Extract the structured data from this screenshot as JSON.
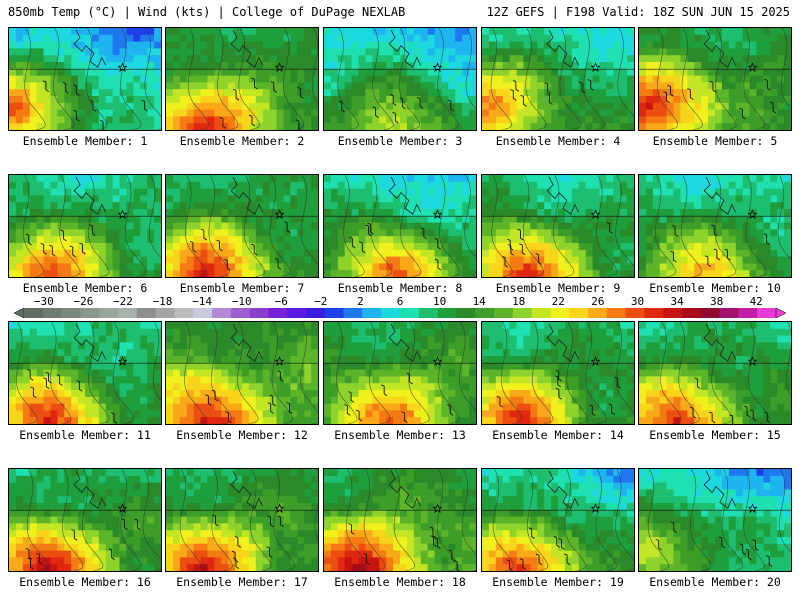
{
  "header": {
    "left": "850mb Temp (°C) | Wind (kts) | College of DuPage NEXLAB",
    "right": "12Z GEFS | F198 Valid: 18Z SUN JUN 15 2025"
  },
  "panel_label_prefix": "Ensemble Member: ",
  "members": [
    {
      "id": "1",
      "label": "Ensemble Member: 1",
      "base": 10,
      "heat": 24,
      "cool": -4,
      "hot_side": "west"
    },
    {
      "id": "2",
      "label": "Ensemble Member: 2",
      "base": 16,
      "heat": 20,
      "cool": 0,
      "hot_side": "southwest"
    },
    {
      "id": "3",
      "label": "Ensemble Member: 3",
      "base": 12,
      "heat": 12,
      "cool": -6,
      "hot_side": "south"
    },
    {
      "id": "4",
      "label": "Ensemble Member: 4",
      "base": 14,
      "heat": 18,
      "cool": -4,
      "hot_side": "west"
    },
    {
      "id": "5",
      "label": "Ensemble Member: 5",
      "base": 16,
      "heat": 22,
      "cool": 0,
      "hot_side": "west"
    },
    {
      "id": "6",
      "label": "Ensemble Member: 6",
      "base": 14,
      "heat": 20,
      "cool": -2,
      "hot_side": "southwest"
    },
    {
      "id": "7",
      "label": "Ensemble Member: 7",
      "base": 15,
      "heat": 22,
      "cool": 0,
      "hot_side": "southwest"
    },
    {
      "id": "8",
      "label": "Ensemble Member: 8",
      "base": 13,
      "heat": 20,
      "cool": -4,
      "hot_side": "south"
    },
    {
      "id": "9",
      "label": "Ensemble Member: 9",
      "base": 15,
      "heat": 20,
      "cool": -4,
      "hot_side": "southwest"
    },
    {
      "id": "10",
      "label": "Ensemble Member: 10",
      "base": 14,
      "heat": 14,
      "cool": -4,
      "hot_side": "south"
    },
    {
      "id": "11",
      "label": "Ensemble Member: 11",
      "base": 14,
      "heat": 22,
      "cool": -2,
      "hot_side": "southwest"
    },
    {
      "id": "12",
      "label": "Ensemble Member: 12",
      "base": 18,
      "heat": 18,
      "cool": 0,
      "hot_side": "southwest"
    },
    {
      "id": "13",
      "label": "Ensemble Member: 13",
      "base": 16,
      "heat": 16,
      "cool": 0,
      "hot_side": "south"
    },
    {
      "id": "14",
      "label": "Ensemble Member: 14",
      "base": 15,
      "heat": 20,
      "cool": -2,
      "hot_side": "southwest"
    },
    {
      "id": "15",
      "label": "Ensemble Member: 15",
      "base": 15,
      "heat": 20,
      "cool": -2,
      "hot_side": "southwest"
    },
    {
      "id": "16",
      "label": "Ensemble Member: 16",
      "base": 15,
      "heat": 24,
      "cool": 0,
      "hot_side": "southwest"
    },
    {
      "id": "17",
      "label": "Ensemble Member: 17",
      "base": 16,
      "heat": 20,
      "cool": 0,
      "hot_side": "southwest"
    },
    {
      "id": "18",
      "label": "Ensemble Member: 18",
      "base": 17,
      "heat": 22,
      "cool": 0,
      "hot_side": "southwest"
    },
    {
      "id": "19",
      "label": "Ensemble Member: 19",
      "base": 14,
      "heat": 22,
      "cool": -6,
      "hot_side": "southwest"
    },
    {
      "id": "20",
      "label": "Ensemble Member: 20",
      "base": 12,
      "heat": 12,
      "cool": -6,
      "hot_side": "west"
    }
  ],
  "colorbar": {
    "tick_labels": [
      "−30",
      "−26",
      "−22",
      "−18",
      "−14",
      "−10",
      "−6",
      "−2",
      "2",
      "6",
      "10",
      "14",
      "18",
      "22",
      "26",
      "30",
      "34",
      "38",
      "42"
    ],
    "tick_values": [
      -30,
      -26,
      -22,
      -18,
      -14,
      -10,
      -6,
      -2,
      2,
      6,
      10,
      14,
      18,
      22,
      26,
      30,
      34,
      38,
      42
    ],
    "min": -32,
    "max": 44,
    "step": 2,
    "colors": [
      "#5e6e62",
      "#6d7c70",
      "#7a8a7e",
      "#8a978c",
      "#9aa59c",
      "#a9b2aa",
      "#8e8e8e",
      "#a5a5a5",
      "#bcbcbc",
      "#c8c8de",
      "#b487d8",
      "#9b5fd0",
      "#8a3fd0",
      "#7a1fd8",
      "#5c1ae0",
      "#3a1ee0",
      "#1e40e8",
      "#1e78f0",
      "#1eb4f0",
      "#1ed8e0",
      "#1ee0b0",
      "#1ebe70",
      "#1f9e3c",
      "#2a8a2a",
      "#3c9e28",
      "#5cb428",
      "#8ed22c",
      "#c3e624",
      "#f0f01c",
      "#f8d41a",
      "#f8a818",
      "#f47a14",
      "#ec4e12",
      "#e02810",
      "#c81410",
      "#a80c18",
      "#900a30",
      "#a0126e",
      "#c41ea6",
      "#e83ad8"
    ]
  }
}
